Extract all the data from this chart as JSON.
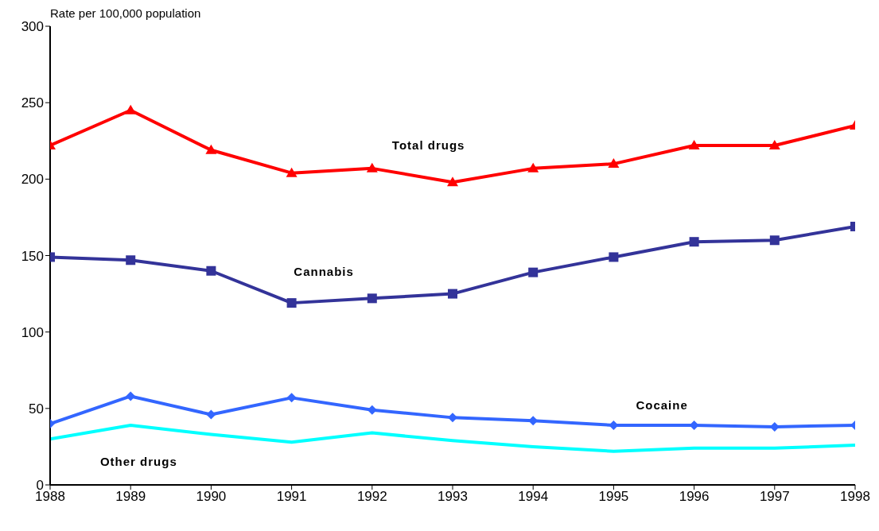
{
  "chart_data": {
    "type": "line",
    "ylabel": "Rate per 100,000 population",
    "x": [
      1988,
      1989,
      1990,
      1991,
      1992,
      1993,
      1994,
      1995,
      1996,
      1997,
      1998
    ],
    "xlim": [
      1988,
      1998
    ],
    "xticks": [
      1988,
      1989,
      1990,
      1991,
      1992,
      1993,
      1994,
      1995,
      1996,
      1997,
      1998
    ],
    "ylim": [
      0,
      300
    ],
    "yticks": [
      0,
      50,
      100,
      150,
      200,
      250,
      300
    ],
    "grid": false,
    "legend": false,
    "series": [
      {
        "name": "Total drugs",
        "color": "#ff0000",
        "marker": "triangle",
        "values": [
          222,
          245,
          219,
          204,
          207,
          198,
          207,
          210,
          222,
          222,
          235
        ]
      },
      {
        "name": "Cannabis",
        "color": "#333399",
        "marker": "square",
        "values": [
          149,
          147,
          140,
          119,
          122,
          125,
          139,
          149,
          159,
          160,
          169
        ]
      },
      {
        "name": "Cocaine",
        "color": "#3366ff",
        "marker": "diamond",
        "values": [
          40,
          58,
          46,
          57,
          49,
          44,
          42,
          39,
          39,
          38,
          39
        ]
      },
      {
        "name": "Other drugs",
        "color": "#00ffff",
        "marker": "none",
        "values": [
          30,
          39,
          33,
          28,
          34,
          29,
          25,
          22,
          24,
          24,
          26
        ]
      }
    ]
  }
}
